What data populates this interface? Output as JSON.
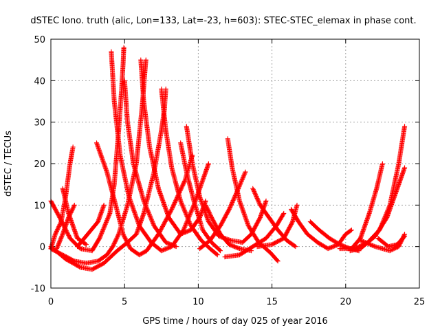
{
  "chart_data": {
    "type": "scatter",
    "title": "dSTEC Iono. truth (alic, Lon=133, Lat=-23, h=603): STEC-STEC_elemax in phase cont.",
    "xlabel": "GPS time / hours of day 025 of year 2016",
    "ylabel": "dSTEC  / TECUs",
    "xlim": [
      0,
      25
    ],
    "ylim": [
      -10,
      50
    ],
    "xticks": [
      0,
      5,
      10,
      15,
      20,
      25
    ],
    "yticks": [
      -10,
      0,
      10,
      20,
      30,
      40,
      50
    ],
    "grid": true,
    "marker": "+",
    "color": "#ff0000",
    "series": [
      {
        "points": [
          [
            0.0,
            11
          ],
          [
            0.6,
            7
          ],
          [
            1.3,
            2
          ],
          [
            2.0,
            -0.5
          ],
          [
            2.8,
            -1
          ],
          [
            3.3,
            2
          ],
          [
            4.0,
            8
          ],
          [
            4.3,
            15
          ],
          [
            4.6,
            28
          ],
          [
            4.8,
            38
          ],
          [
            4.9,
            44
          ],
          [
            4.95,
            48
          ]
        ]
      },
      {
        "points": [
          [
            0.0,
            -0.5
          ],
          [
            0.3,
            3
          ],
          [
            0.7,
            6
          ],
          [
            1.0,
            12
          ],
          [
            1.3,
            20
          ],
          [
            1.5,
            24
          ]
        ]
      },
      {
        "points": [
          [
            0.0,
            -0.5
          ],
          [
            0.8,
            -2
          ],
          [
            1.6,
            -3.5
          ],
          [
            2.4,
            -4
          ],
          [
            3.2,
            -3.5
          ],
          [
            3.8,
            -2
          ],
          [
            4.2,
            0
          ],
          [
            4.6,
            3
          ],
          [
            5.2,
            10
          ],
          [
            5.8,
            20
          ],
          [
            6.2,
            34
          ],
          [
            6.4,
            43
          ],
          [
            6.45,
            45
          ]
        ]
      },
      {
        "points": [
          [
            0.0,
            0
          ],
          [
            1.0,
            -3
          ],
          [
            2.0,
            -5
          ],
          [
            2.8,
            -5.5
          ],
          [
            3.6,
            -4
          ],
          [
            4.5,
            -1
          ],
          [
            5.2,
            1
          ],
          [
            5.8,
            3
          ],
          [
            6.3,
            8
          ],
          [
            7.0,
            18
          ],
          [
            7.5,
            28
          ],
          [
            7.7,
            33
          ],
          [
            7.8,
            38
          ]
        ]
      },
      {
        "points": [
          [
            0.8,
            14
          ],
          [
            1.2,
            8
          ],
          [
            1.8,
            2
          ],
          [
            2.4,
            0.5
          ]
        ]
      },
      {
        "points": [
          [
            0.4,
            -0.5
          ],
          [
            0.8,
            3
          ],
          [
            1.2,
            7
          ],
          [
            1.6,
            10
          ]
        ]
      },
      {
        "points": [
          [
            3.1,
            25
          ],
          [
            3.8,
            18
          ],
          [
            4.4,
            10
          ],
          [
            4.9,
            3
          ],
          [
            5.4,
            -0.5
          ],
          [
            6.0,
            -2
          ],
          [
            6.5,
            -1
          ],
          [
            7.3,
            3
          ],
          [
            8.2,
            9
          ],
          [
            9.1,
            16
          ],
          [
            9.6,
            22
          ]
        ]
      },
      {
        "points": [
          [
            1.8,
            0
          ],
          [
            2.5,
            3
          ],
          [
            3.2,
            6
          ],
          [
            3.6,
            10
          ]
        ]
      },
      {
        "points": [
          [
            4.1,
            47
          ],
          [
            4.3,
            35
          ],
          [
            4.7,
            22
          ],
          [
            5.3,
            12
          ],
          [
            6.0,
            5
          ],
          [
            6.8,
            1
          ],
          [
            7.5,
            -1
          ],
          [
            8.2,
            0
          ],
          [
            9.0,
            4
          ],
          [
            9.7,
            10
          ],
          [
            10.3,
            16
          ],
          [
            10.7,
            20
          ]
        ]
      },
      {
        "points": [
          [
            5.0,
            40
          ],
          [
            5.2,
            30
          ],
          [
            5.6,
            20
          ],
          [
            6.3,
            11
          ],
          [
            7.0,
            5
          ],
          [
            7.8,
            1
          ],
          [
            8.5,
            0
          ]
        ]
      },
      {
        "points": [
          [
            6.1,
            45
          ],
          [
            6.3,
            35
          ],
          [
            6.7,
            24
          ],
          [
            7.3,
            14
          ],
          [
            8.0,
            7
          ],
          [
            8.8,
            3
          ],
          [
            9.5,
            4
          ],
          [
            10.1,
            7
          ],
          [
            10.5,
            11
          ]
        ]
      },
      {
        "points": [
          [
            7.5,
            38
          ],
          [
            7.8,
            28
          ],
          [
            8.2,
            19
          ],
          [
            8.8,
            11
          ],
          [
            9.5,
            5
          ],
          [
            10.2,
            1.5
          ],
          [
            10.8,
            -0.5
          ],
          [
            11.3,
            -2
          ]
        ]
      },
      {
        "points": [
          [
            8.8,
            25
          ],
          [
            9.2,
            18
          ],
          [
            9.7,
            11
          ],
          [
            10.3,
            4
          ],
          [
            10.9,
            1
          ],
          [
            11.5,
            -1
          ]
        ]
      },
      {
        "points": [
          [
            9.2,
            29
          ],
          [
            9.6,
            20
          ],
          [
            10.1,
            12
          ],
          [
            10.7,
            6
          ],
          [
            11.4,
            2.5
          ],
          [
            12.2,
            1.5
          ],
          [
            13.0,
            1
          ],
          [
            13.6,
            3
          ],
          [
            14.2,
            7
          ],
          [
            14.6,
            11
          ]
        ]
      },
      {
        "points": [
          [
            10.1,
            -0.5
          ],
          [
            10.8,
            1.5
          ],
          [
            11.5,
            5
          ],
          [
            12.1,
            9
          ],
          [
            12.6,
            13
          ],
          [
            13.2,
            18
          ]
        ]
      },
      {
        "points": [
          [
            10.5,
            10
          ],
          [
            10.9,
            7
          ],
          [
            11.5,
            3
          ],
          [
            12.1,
            0.5
          ],
          [
            12.8,
            -0.5
          ],
          [
            13.6,
            -1
          ]
        ]
      },
      {
        "points": [
          [
            12.0,
            26
          ],
          [
            12.3,
            19
          ],
          [
            12.8,
            11
          ],
          [
            13.4,
            5
          ],
          [
            14.1,
            1
          ],
          [
            14.9,
            -1.5
          ],
          [
            15.4,
            -3.5
          ]
        ]
      },
      {
        "points": [
          [
            13.7,
            14
          ],
          [
            14.2,
            10
          ],
          [
            14.8,
            7
          ],
          [
            15.4,
            4
          ],
          [
            16.0,
            1.5
          ],
          [
            16.6,
            0
          ]
        ]
      },
      {
        "points": [
          [
            11.8,
            -2.5
          ],
          [
            12.8,
            -2
          ],
          [
            13.7,
            0
          ],
          [
            14.6,
            2
          ],
          [
            15.3,
            5
          ],
          [
            15.8,
            8
          ]
        ]
      },
      {
        "points": [
          [
            14.0,
            0
          ],
          [
            15.0,
            0.5
          ],
          [
            15.8,
            2
          ],
          [
            16.4,
            6
          ],
          [
            16.7,
            10
          ]
        ]
      },
      {
        "points": [
          [
            16.3,
            9
          ],
          [
            16.8,
            6
          ],
          [
            17.4,
            3
          ],
          [
            18.1,
            1
          ],
          [
            18.8,
            -0.5
          ],
          [
            19.5,
            0.5
          ],
          [
            20.0,
            3
          ],
          [
            20.4,
            4
          ]
        ]
      },
      {
        "points": [
          [
            17.6,
            6
          ],
          [
            18.2,
            4
          ],
          [
            18.9,
            2
          ],
          [
            19.6,
            0.5
          ],
          [
            20.3,
            -0.5
          ],
          [
            20.9,
            -1
          ]
        ]
      },
      {
        "points": [
          [
            19.6,
            -0.5
          ],
          [
            20.4,
            -0.5
          ],
          [
            21.0,
            2
          ],
          [
            21.6,
            8
          ],
          [
            22.1,
            14
          ],
          [
            22.5,
            20
          ]
        ]
      },
      {
        "points": [
          [
            20.3,
            -1
          ],
          [
            21.0,
            -0.5
          ],
          [
            22.0,
            2.5
          ],
          [
            22.8,
            7
          ],
          [
            23.5,
            14
          ],
          [
            24.0,
            19
          ]
        ]
      },
      {
        "points": [
          [
            20.6,
            -0.5
          ],
          [
            21.5,
            1
          ],
          [
            22.3,
            4
          ],
          [
            23.0,
            10
          ],
          [
            23.6,
            20
          ],
          [
            24.0,
            29
          ]
        ]
      },
      {
        "points": [
          [
            21.0,
            1.5
          ],
          [
            22.0,
            0
          ],
          [
            23.0,
            -1
          ],
          [
            23.6,
            0
          ],
          [
            24.0,
            3
          ]
        ]
      },
      {
        "points": [
          [
            22.2,
            2
          ],
          [
            22.9,
            0
          ],
          [
            23.5,
            0.5
          ],
          [
            24.0,
            2.5
          ]
        ]
      }
    ]
  }
}
